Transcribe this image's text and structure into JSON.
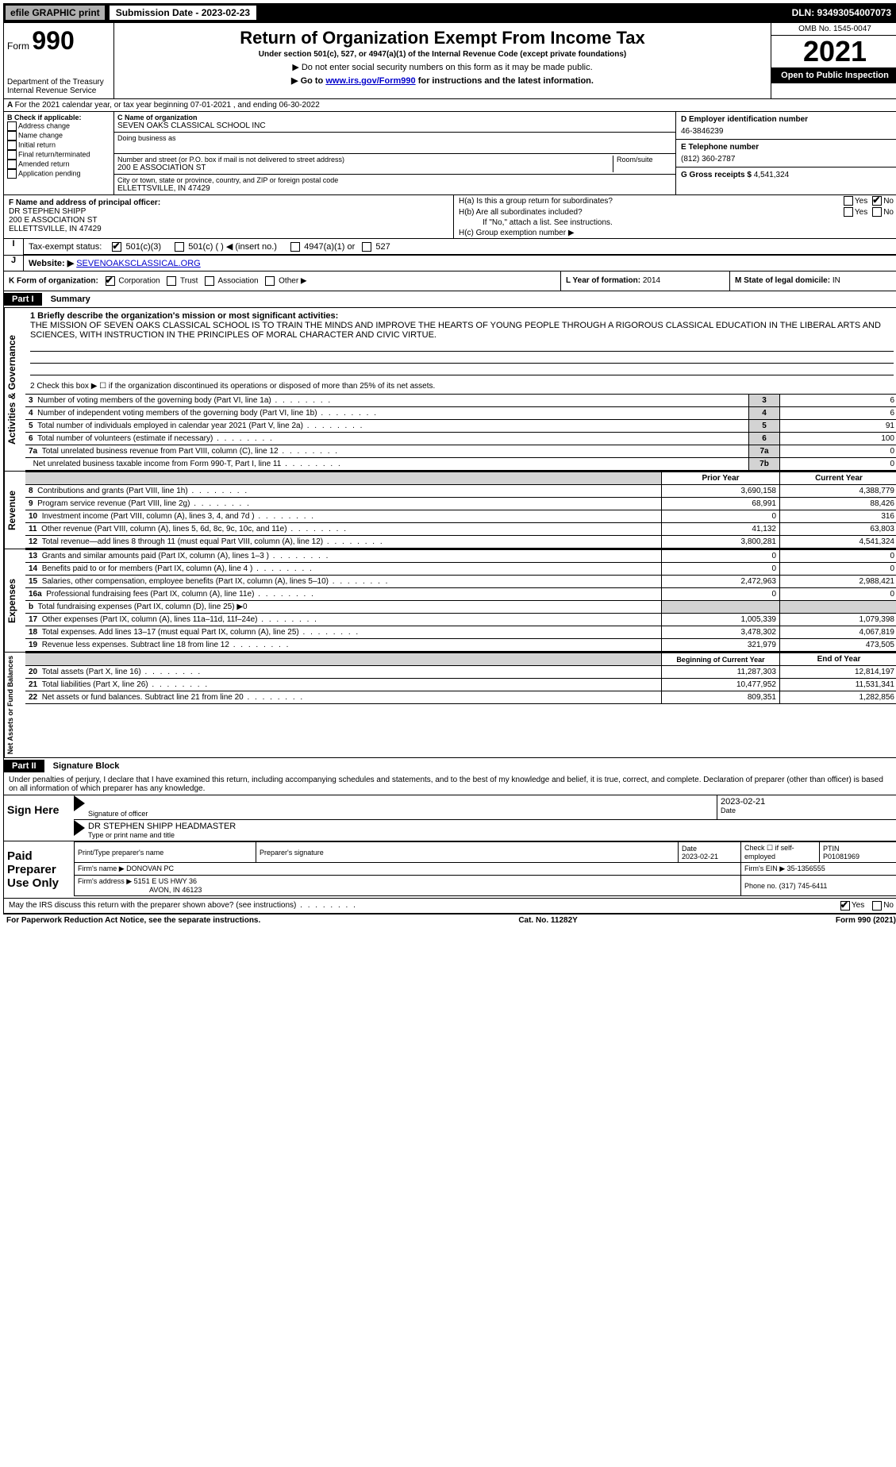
{
  "topbar": {
    "efile_label": "efile GRAPHIC print",
    "submission_label": "Submission Date - 2023-02-23",
    "dln": "DLN: 93493054007073"
  },
  "header": {
    "form_word": "Form",
    "form_num": "990",
    "dept": "Department of the Treasury",
    "irs": "Internal Revenue Service",
    "title": "Return of Organization Exempt From Income Tax",
    "subtitle": "Under section 501(c), 527, or 4947(a)(1) of the Internal Revenue Code (except private foundations)",
    "note1": "▶ Do not enter social security numbers on this form as it may be made public.",
    "note2_pre": "▶ Go to ",
    "note2_link": "www.irs.gov/Form990",
    "note2_post": " for instructions and the latest information.",
    "omb": "OMB No. 1545-0047",
    "year": "2021",
    "open": "Open to Public Inspection"
  },
  "period": {
    "line_a": "For the 2021 calendar year, or tax year beginning 07-01-2021    , and ending 06-30-2022"
  },
  "box_b": {
    "heading": "B Check if applicable:",
    "opts": [
      "Address change",
      "Name change",
      "Initial return",
      "Final return/terminated",
      "Amended return",
      "Application pending"
    ]
  },
  "box_c": {
    "name_label": "C Name of organization",
    "name": "SEVEN OAKS CLASSICAL SCHOOL INC",
    "dba_label": "Doing business as",
    "addr_label": "Number and street (or P.O. box if mail is not delivered to street address)",
    "room_label": "Room/suite",
    "addr": "200 E ASSOCIATION ST",
    "city_label": "City or town, state or province, country, and ZIP or foreign postal code",
    "city": "ELLETTSVILLE, IN  47429"
  },
  "box_d": {
    "label": "D Employer identification number",
    "val": "46-3846239"
  },
  "box_e": {
    "label": "E Telephone number",
    "val": "(812) 360-2787"
  },
  "box_g": {
    "label": "G Gross receipts $",
    "val": "4,541,324"
  },
  "box_f": {
    "label": "F  Name and address of principal officer:",
    "l1": "DR STEPHEN SHIPP",
    "l2": "200 E ASSOCIATION ST",
    "l3": "ELLETTSVILLE, IN  47429"
  },
  "box_h": {
    "ha": "H(a)  Is this a group return for subordinates?",
    "hb": "H(b)  Are all subordinates included?",
    "hb_note": "If \"No,\" attach a list. See instructions.",
    "hc": "H(c)  Group exemption number ▶",
    "yes": "Yes",
    "no": "No"
  },
  "box_i": {
    "label": "Tax-exempt status:",
    "o1": "501(c)(3)",
    "o2": "501(c) (   ) ◀ (insert no.)",
    "o3": "4947(a)(1) or",
    "o4": "527"
  },
  "box_j": {
    "label": "Website: ▶",
    "val": "SEVENOAKSCLASSICAL.ORG"
  },
  "box_k": {
    "label": "K Form of organization:",
    "o1": "Corporation",
    "o2": "Trust",
    "o3": "Association",
    "o4": "Other ▶"
  },
  "box_l": {
    "label": "L Year of formation:",
    "val": "2014"
  },
  "box_m": {
    "label": "M State of legal domicile:",
    "val": "IN"
  },
  "part1": {
    "tag": "Part I",
    "title": "Summary",
    "briefly_label": "1  Briefly describe the organization's mission or most significant activities:",
    "mission": "THE MISSION OF SEVEN OAKS CLASSICAL SCHOOL IS TO TRAIN THE MINDS AND IMPROVE THE HEARTS OF YOUNG PEOPLE THROUGH A RIGOROUS CLASSICAL EDUCATION IN THE LIBERAL ARTS AND SCIENCES, WITH INSTRUCTION IN THE PRINCIPLES OF MORAL CHARACTER AND CIVIC VIRTUE.",
    "line2": "2  Check this box ▶ ☐  if the organization discontinued its operations or disposed of more than 25% of its net assets."
  },
  "governance_rows": [
    {
      "n": "3",
      "desc": "Number of voting members of the governing body (Part VI, line 1a)",
      "box": "3",
      "val": "6"
    },
    {
      "n": "4",
      "desc": "Number of independent voting members of the governing body (Part VI, line 1b)",
      "box": "4",
      "val": "6"
    },
    {
      "n": "5",
      "desc": "Total number of individuals employed in calendar year 2021 (Part V, line 2a)",
      "box": "5",
      "val": "91"
    },
    {
      "n": "6",
      "desc": "Total number of volunteers (estimate if necessary)",
      "box": "6",
      "val": "100"
    },
    {
      "n": "7a",
      "desc": "Total unrelated business revenue from Part VIII, column (C), line 12",
      "box": "7a",
      "val": "0"
    },
    {
      "n": "",
      "desc": "Net unrelated business taxable income from Form 990-T, Part I, line 11",
      "box": "7b",
      "val": "0"
    }
  ],
  "two_col_header": {
    "prior": "Prior Year",
    "current": "Current Year"
  },
  "revenue_rows": [
    {
      "n": "8",
      "desc": "Contributions and grants (Part VIII, line 1h)",
      "p": "3,690,158",
      "c": "4,388,779"
    },
    {
      "n": "9",
      "desc": "Program service revenue (Part VIII, line 2g)",
      "p": "68,991",
      "c": "88,426"
    },
    {
      "n": "10",
      "desc": "Investment income (Part VIII, column (A), lines 3, 4, and 7d )",
      "p": "0",
      "c": "316"
    },
    {
      "n": "11",
      "desc": "Other revenue (Part VIII, column (A), lines 5, 6d, 8c, 9c, 10c, and 11e)",
      "p": "41,132",
      "c": "63,803"
    },
    {
      "n": "12",
      "desc": "Total revenue—add lines 8 through 11 (must equal Part VIII, column (A), line 12)",
      "p": "3,800,281",
      "c": "4,541,324"
    }
  ],
  "expense_rows": [
    {
      "n": "13",
      "desc": "Grants and similar amounts paid (Part IX, column (A), lines 1–3 )",
      "p": "0",
      "c": "0"
    },
    {
      "n": "14",
      "desc": "Benefits paid to or for members (Part IX, column (A), line 4 )",
      "p": "0",
      "c": "0"
    },
    {
      "n": "15",
      "desc": "Salaries, other compensation, employee benefits (Part IX, column (A), lines 5–10)",
      "p": "2,472,963",
      "c": "2,988,421"
    },
    {
      "n": "16a",
      "desc": "Professional fundraising fees (Part IX, column (A), line 11e)",
      "p": "0",
      "c": "0"
    }
  ],
  "expense_b": {
    "n": "b",
    "desc": "Total fundraising expenses (Part IX, column (D), line 25) ▶0"
  },
  "expense_rows2": [
    {
      "n": "17",
      "desc": "Other expenses (Part IX, column (A), lines 11a–11d, 11f–24e)",
      "p": "1,005,339",
      "c": "1,079,398"
    },
    {
      "n": "18",
      "desc": "Total expenses. Add lines 13–17 (must equal Part IX, column (A), line 25)",
      "p": "3,478,302",
      "c": "4,067,819"
    },
    {
      "n": "19",
      "desc": "Revenue less expenses. Subtract line 18 from line 12",
      "p": "321,979",
      "c": "473,505"
    }
  ],
  "net_header": {
    "prior": "Beginning of Current Year",
    "current": "End of Year"
  },
  "net_rows": [
    {
      "n": "20",
      "desc": "Total assets (Part X, line 16)",
      "p": "11,287,303",
      "c": "12,814,197"
    },
    {
      "n": "21",
      "desc": "Total liabilities (Part X, line 26)",
      "p": "10,477,952",
      "c": "11,531,341"
    },
    {
      "n": "22",
      "desc": "Net assets or fund balances. Subtract line 21 from line 20",
      "p": "809,351",
      "c": "1,282,856"
    }
  ],
  "sidebar": {
    "gov": "Activities & Governance",
    "rev": "Revenue",
    "exp": "Expenses",
    "net": "Net Assets or Fund Balances"
  },
  "part2": {
    "tag": "Part II",
    "title": "Signature Block",
    "penalty": "Under penalties of perjury, I declare that I have examined this return, including accompanying schedules and statements, and to the best of my knowledge and belief, it is true, correct, and complete. Declaration of preparer (other than officer) is based on all information of which preparer has any knowledge."
  },
  "sign": {
    "label": "Sign Here",
    "sig_officer": "Signature of officer",
    "date_label": "Date",
    "date": "2023-02-21",
    "name": "DR STEPHEN SHIPP  HEADMASTER",
    "name_label": "Type or print name and title"
  },
  "paid": {
    "label": "Paid Preparer Use Only",
    "h1": "Print/Type preparer's name",
    "h2": "Preparer's signature",
    "h3": "Date",
    "h3v": "2023-02-21",
    "h4": "Check ☐ if self-employed",
    "h5": "PTIN",
    "h5v": "P01081969",
    "firm_name_l": "Firm's name    ▶",
    "firm_name": "DONOVAN PC",
    "firm_ein_l": "Firm's EIN ▶",
    "firm_ein": "35-1356555",
    "firm_addr_l": "Firm's address ▶",
    "firm_addr1": "5151 E US HWY 36",
    "firm_addr2": "AVON, IN  46123",
    "phone_l": "Phone no.",
    "phone": "(317) 745-6411"
  },
  "discuss": {
    "q": "May the IRS discuss this return with the preparer shown above? (see instructions)",
    "yes": "Yes",
    "no": "No"
  },
  "footer": {
    "pra": "For Paperwork Reduction Act Notice, see the separate instructions.",
    "cat": "Cat. No. 11282Y",
    "form": "Form 990 (2021)"
  }
}
